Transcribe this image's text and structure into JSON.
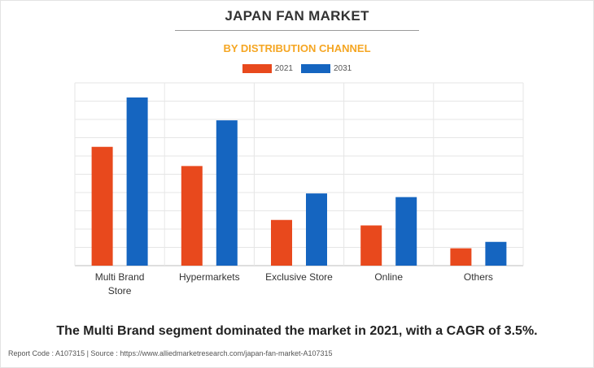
{
  "header": {
    "title": "JAPAN FAN MARKET",
    "subtitle": "BY DISTRIBUTION CHANNEL"
  },
  "colors": {
    "series_2021": "#e8491d",
    "series_2031": "#1565c0",
    "subtitle": "#f5a623"
  },
  "chart_data": {
    "type": "bar",
    "title": "JAPAN FAN MARKET",
    "subtitle": "BY DISTRIBUTION CHANNEL",
    "categories": [
      "Multi Brand Store",
      "Hypermarkets",
      "Exclusive Store",
      "Online",
      "Others"
    ],
    "category_lines": [
      [
        "Multi Brand",
        "Store"
      ],
      [
        "Hypermarkets"
      ],
      [
        "Exclusive Store"
      ],
      [
        "Online"
      ],
      [
        "Others"
      ]
    ],
    "series": [
      {
        "name": "2021",
        "color": "#e8491d",
        "values": [
          6.5,
          5.45,
          2.5,
          2.2,
          0.95
        ]
      },
      {
        "name": "2031",
        "color": "#1565c0",
        "values": [
          9.2,
          7.95,
          3.95,
          3.75,
          1.3
        ]
      }
    ],
    "ylim": [
      0,
      10
    ],
    "grid": true,
    "y_tick_labels_shown": false,
    "legend_position": "top-center"
  },
  "caption": "The Multi Brand segment dominated the market in 2021, with a CAGR of 3.5%.",
  "footer": "Report Code : A107315  |  Source : https://www.alliedmarketresearch.com/japan-fan-market-A107315"
}
